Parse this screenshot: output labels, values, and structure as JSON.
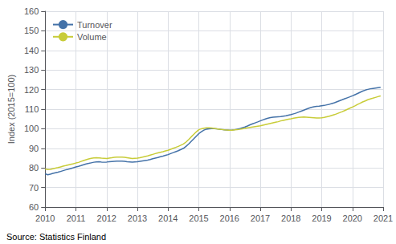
{
  "chart_data": {
    "type": "line",
    "y_label": "Index (2015=100)",
    "annotations": [
      "Source: Statistics Finland"
    ],
    "xlim": [
      2010,
      2021
    ],
    "ylim": [
      60,
      160
    ],
    "xticks": [
      2010,
      2011,
      2012,
      2013,
      2014,
      2015,
      2016,
      2017,
      2018,
      2019,
      2020,
      2021
    ],
    "yticks": [
      60,
      70,
      80,
      90,
      100,
      110,
      120,
      130,
      140,
      150,
      160
    ],
    "grid": true,
    "legend": "upper left",
    "x": [
      2010.0,
      2010.083,
      2010.167,
      2010.25,
      2010.333,
      2010.417,
      2010.5,
      2010.583,
      2010.667,
      2010.75,
      2010.833,
      2010.917,
      2011.0,
      2011.083,
      2011.167,
      2011.25,
      2011.333,
      2011.417,
      2011.5,
      2011.583,
      2011.667,
      2011.75,
      2011.833,
      2011.917,
      2012.0,
      2012.083,
      2012.167,
      2012.25,
      2012.333,
      2012.417,
      2012.5,
      2012.583,
      2012.667,
      2012.75,
      2012.833,
      2012.917,
      2013.0,
      2013.083,
      2013.167,
      2013.25,
      2013.333,
      2013.417,
      2013.5,
      2013.583,
      2013.667,
      2013.75,
      2013.833,
      2013.917,
      2014.0,
      2014.083,
      2014.167,
      2014.25,
      2014.333,
      2014.417,
      2014.5,
      2014.583,
      2014.667,
      2014.75,
      2014.833,
      2014.917,
      2015.0,
      2015.083,
      2015.167,
      2015.25,
      2015.333,
      2015.417,
      2015.5,
      2015.583,
      2015.667,
      2015.75,
      2015.833,
      2015.917,
      2016.0,
      2016.083,
      2016.167,
      2016.25,
      2016.333,
      2016.417,
      2016.5,
      2016.583,
      2016.667,
      2016.75,
      2016.833,
      2016.917,
      2017.0,
      2017.083,
      2017.167,
      2017.25,
      2017.333,
      2017.417,
      2017.5,
      2017.583,
      2017.667,
      2017.75,
      2017.833,
      2017.917,
      2018.0,
      2018.083,
      2018.167,
      2018.25,
      2018.333,
      2018.417,
      2018.5,
      2018.583,
      2018.667,
      2018.75,
      2018.833,
      2018.917,
      2019.0,
      2019.083,
      2019.167,
      2019.25,
      2019.333,
      2019.417,
      2019.5,
      2019.583,
      2019.667,
      2019.75,
      2019.833,
      2019.917,
      2020.0,
      2020.083,
      2020.167,
      2020.25,
      2020.333,
      2020.417,
      2020.5,
      2020.583,
      2020.667,
      2020.75,
      2020.833,
      2020.917
    ],
    "series": [
      {
        "name": "Turnover",
        "color": "#4472a8",
        "values": [
          77.0,
          76.5,
          76.8,
          77.2,
          77.5,
          77.8,
          78.2,
          78.6,
          79.0,
          79.3,
          79.7,
          80.1,
          80.5,
          80.8,
          81.2,
          81.6,
          82.0,
          82.3,
          82.6,
          82.9,
          83.1,
          83.2,
          83.0,
          82.9,
          83.0,
          83.2,
          83.3,
          83.4,
          83.5,
          83.5,
          83.5,
          83.4,
          83.2,
          83.1,
          83.0,
          83.1,
          83.2,
          83.4,
          83.6,
          83.8,
          84.0,
          84.3,
          84.7,
          85.0,
          85.3,
          85.7,
          86.0,
          86.4,
          86.8,
          87.3,
          87.8,
          88.3,
          88.8,
          89.4,
          90.0,
          91.0,
          92.2,
          93.5,
          94.8,
          96.2,
          97.5,
          98.5,
          99.3,
          99.8,
          100.0,
          100.1,
          100.1,
          100.0,
          99.8,
          99.6,
          99.4,
          99.3,
          99.2,
          99.3,
          99.5,
          99.8,
          100.1,
          100.5,
          100.9,
          101.4,
          102.0,
          102.5,
          103.0,
          103.5,
          104.0,
          104.5,
          105.0,
          105.4,
          105.7,
          105.9,
          106.0,
          106.1,
          106.2,
          106.4,
          106.6,
          106.9,
          107.2,
          107.6,
          108.0,
          108.5,
          109.0,
          109.5,
          110.0,
          110.5,
          110.9,
          111.2,
          111.4,
          111.5,
          111.7,
          111.9,
          112.2,
          112.5,
          112.9,
          113.3,
          113.8,
          114.3,
          114.8,
          115.3,
          115.8,
          116.3,
          116.8,
          117.4,
          118.0,
          118.6,
          119.2,
          119.7,
          120.1,
          120.4,
          120.6,
          120.8,
          121.0,
          121.2
        ]
      },
      {
        "name": "Volume",
        "color": "#c8cc38",
        "values": [
          79.5,
          79.2,
          79.3,
          79.6,
          79.9,
          80.2,
          80.5,
          80.9,
          81.2,
          81.5,
          81.8,
          82.1,
          82.5,
          82.8,
          83.3,
          83.8,
          84.2,
          84.6,
          84.9,
          85.1,
          85.2,
          85.1,
          85.0,
          84.9,
          84.8,
          85.0,
          85.2,
          85.4,
          85.5,
          85.5,
          85.5,
          85.4,
          85.2,
          85.0,
          84.8,
          84.9,
          85.0,
          85.2,
          85.5,
          85.8,
          86.1,
          86.5,
          86.9,
          87.3,
          87.7,
          88.0,
          88.3,
          88.7,
          89.0,
          89.5,
          90.0,
          90.5,
          91.0,
          91.6,
          92.2,
          93.2,
          94.4,
          95.8,
          97.1,
          98.4,
          99.5,
          100.0,
          100.3,
          100.5,
          100.5,
          100.4,
          100.2,
          100.0,
          99.8,
          99.6,
          99.4,
          99.3,
          99.2,
          99.2,
          99.4,
          99.5,
          99.7,
          100.0,
          100.2,
          100.5,
          100.7,
          100.9,
          101.1,
          101.3,
          101.5,
          101.8,
          102.1,
          102.4,
          102.7,
          103.0,
          103.3,
          103.6,
          104.0,
          104.3,
          104.6,
          104.9,
          105.1,
          105.4,
          105.6,
          105.8,
          105.9,
          106.0,
          105.9,
          105.8,
          105.7,
          105.6,
          105.5,
          105.5,
          105.6,
          105.8,
          106.1,
          106.4,
          106.8,
          107.2,
          107.7,
          108.2,
          108.7,
          109.3,
          109.9,
          110.5,
          111.1,
          111.7,
          112.4,
          113.0,
          113.7,
          114.2,
          114.8,
          115.2,
          115.6,
          116.0,
          116.4,
          116.8
        ]
      }
    ]
  }
}
